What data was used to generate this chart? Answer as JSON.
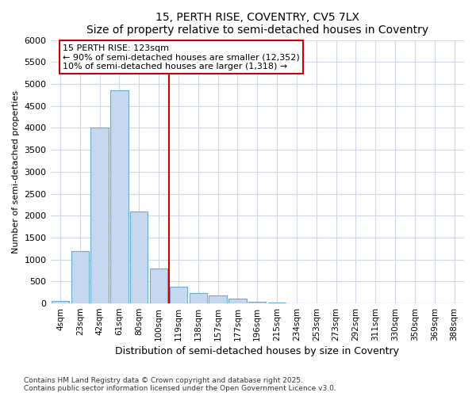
{
  "title_line1": "15, PERTH RISE, COVENTRY, CV5 7LX",
  "title_line2": "Size of property relative to semi-detached houses in Coventry",
  "xlabel": "Distribution of semi-detached houses by size in Coventry",
  "ylabel": "Number of semi-detached properties",
  "bin_labels": [
    "4sqm",
    "23sqm",
    "42sqm",
    "61sqm",
    "80sqm",
    "100sqm",
    "119sqm",
    "138sqm",
    "157sqm",
    "177sqm",
    "196sqm",
    "215sqm",
    "234sqm",
    "253sqm",
    "273sqm",
    "292sqm",
    "311sqm",
    "330sqm",
    "350sqm",
    "369sqm",
    "388sqm"
  ],
  "bar_values": [
    60,
    1200,
    4000,
    4850,
    2100,
    800,
    380,
    240,
    190,
    110,
    45,
    20,
    0,
    0,
    0,
    0,
    0,
    0,
    0,
    0,
    0
  ],
  "bar_color": "#c5d8f0",
  "bar_edgecolor": "#6aaad4",
  "vline_pos": 6,
  "vline_color": "#cc0000",
  "annotation_text": "15 PERTH RISE: 123sqm\n← 90% of semi-detached houses are smaller (12,352)\n10% of semi-detached houses are larger (1,318) →",
  "annotation_box_edgecolor": "#cc0000",
  "ylim_max": 6000,
  "yticks": [
    0,
    500,
    1000,
    1500,
    2000,
    2500,
    3000,
    3500,
    4000,
    4500,
    5000,
    5500,
    6000
  ],
  "footer_line1": "Contains HM Land Registry data © Crown copyright and database right 2025.",
  "footer_line2": "Contains public sector information licensed under the Open Government Licence v3.0.",
  "bg_color": "#ffffff",
  "grid_color": "#d0d8e8"
}
